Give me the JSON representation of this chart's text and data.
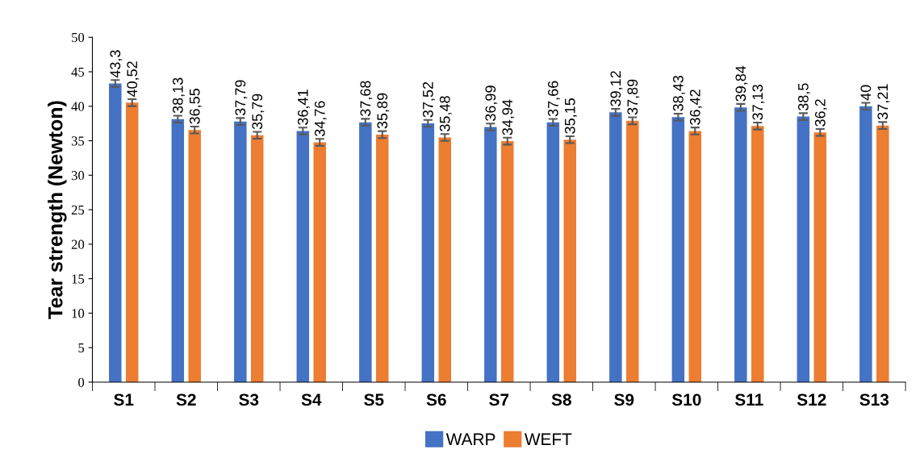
{
  "chart_data": {
    "type": "bar",
    "ylabel": "Tear strength (Newton)",
    "categories": [
      "S1",
      "S2",
      "S3",
      "S4",
      "S5",
      "S6",
      "S7",
      "S8",
      "S9",
      "S10",
      "S11",
      "S12",
      "S13"
    ],
    "series": [
      {
        "name": "WARP",
        "color": "#4472c4",
        "values": [
          43.3,
          38.13,
          37.79,
          36.41,
          37.68,
          37.52,
          36.99,
          37.66,
          39.12,
          38.43,
          39.84,
          38.5,
          40
        ],
        "errors": [
          0.5,
          0.5,
          0.5,
          0.5,
          0.5,
          0.5,
          0.5,
          0.5,
          0.5,
          0.5,
          0.5,
          0.5,
          0.5
        ],
        "value_labels": [
          "43,3",
          "38,13",
          "37,79",
          "36,41",
          "37,68",
          "37,52",
          "36,99",
          "37,66",
          "39,12",
          "38,43",
          "39,84",
          "38,5",
          "40"
        ]
      },
      {
        "name": "WEFT",
        "color": "#ed7d31",
        "values": [
          40.52,
          36.55,
          35.79,
          34.76,
          35.89,
          35.48,
          34.94,
          35.15,
          37.89,
          36.42,
          37.13,
          36.2,
          37.21
        ],
        "errors": [
          0.5,
          0.5,
          0.5,
          0.5,
          0.5,
          0.5,
          0.5,
          0.5,
          0.5,
          0.5,
          0.5,
          0.5,
          0.5
        ],
        "value_labels": [
          "40,52",
          "36,55",
          "35,79",
          "34,76",
          "35,89",
          "35,48",
          "34,94",
          "35,15",
          "37,89",
          "36,42",
          "37,13",
          "36,2",
          "37,21"
        ]
      }
    ],
    "ylim": [
      0,
      50
    ],
    "yticks": [
      0,
      5,
      10,
      15,
      20,
      25,
      30,
      35,
      40,
      45,
      50
    ],
    "grid": false,
    "legend": "bottom"
  }
}
